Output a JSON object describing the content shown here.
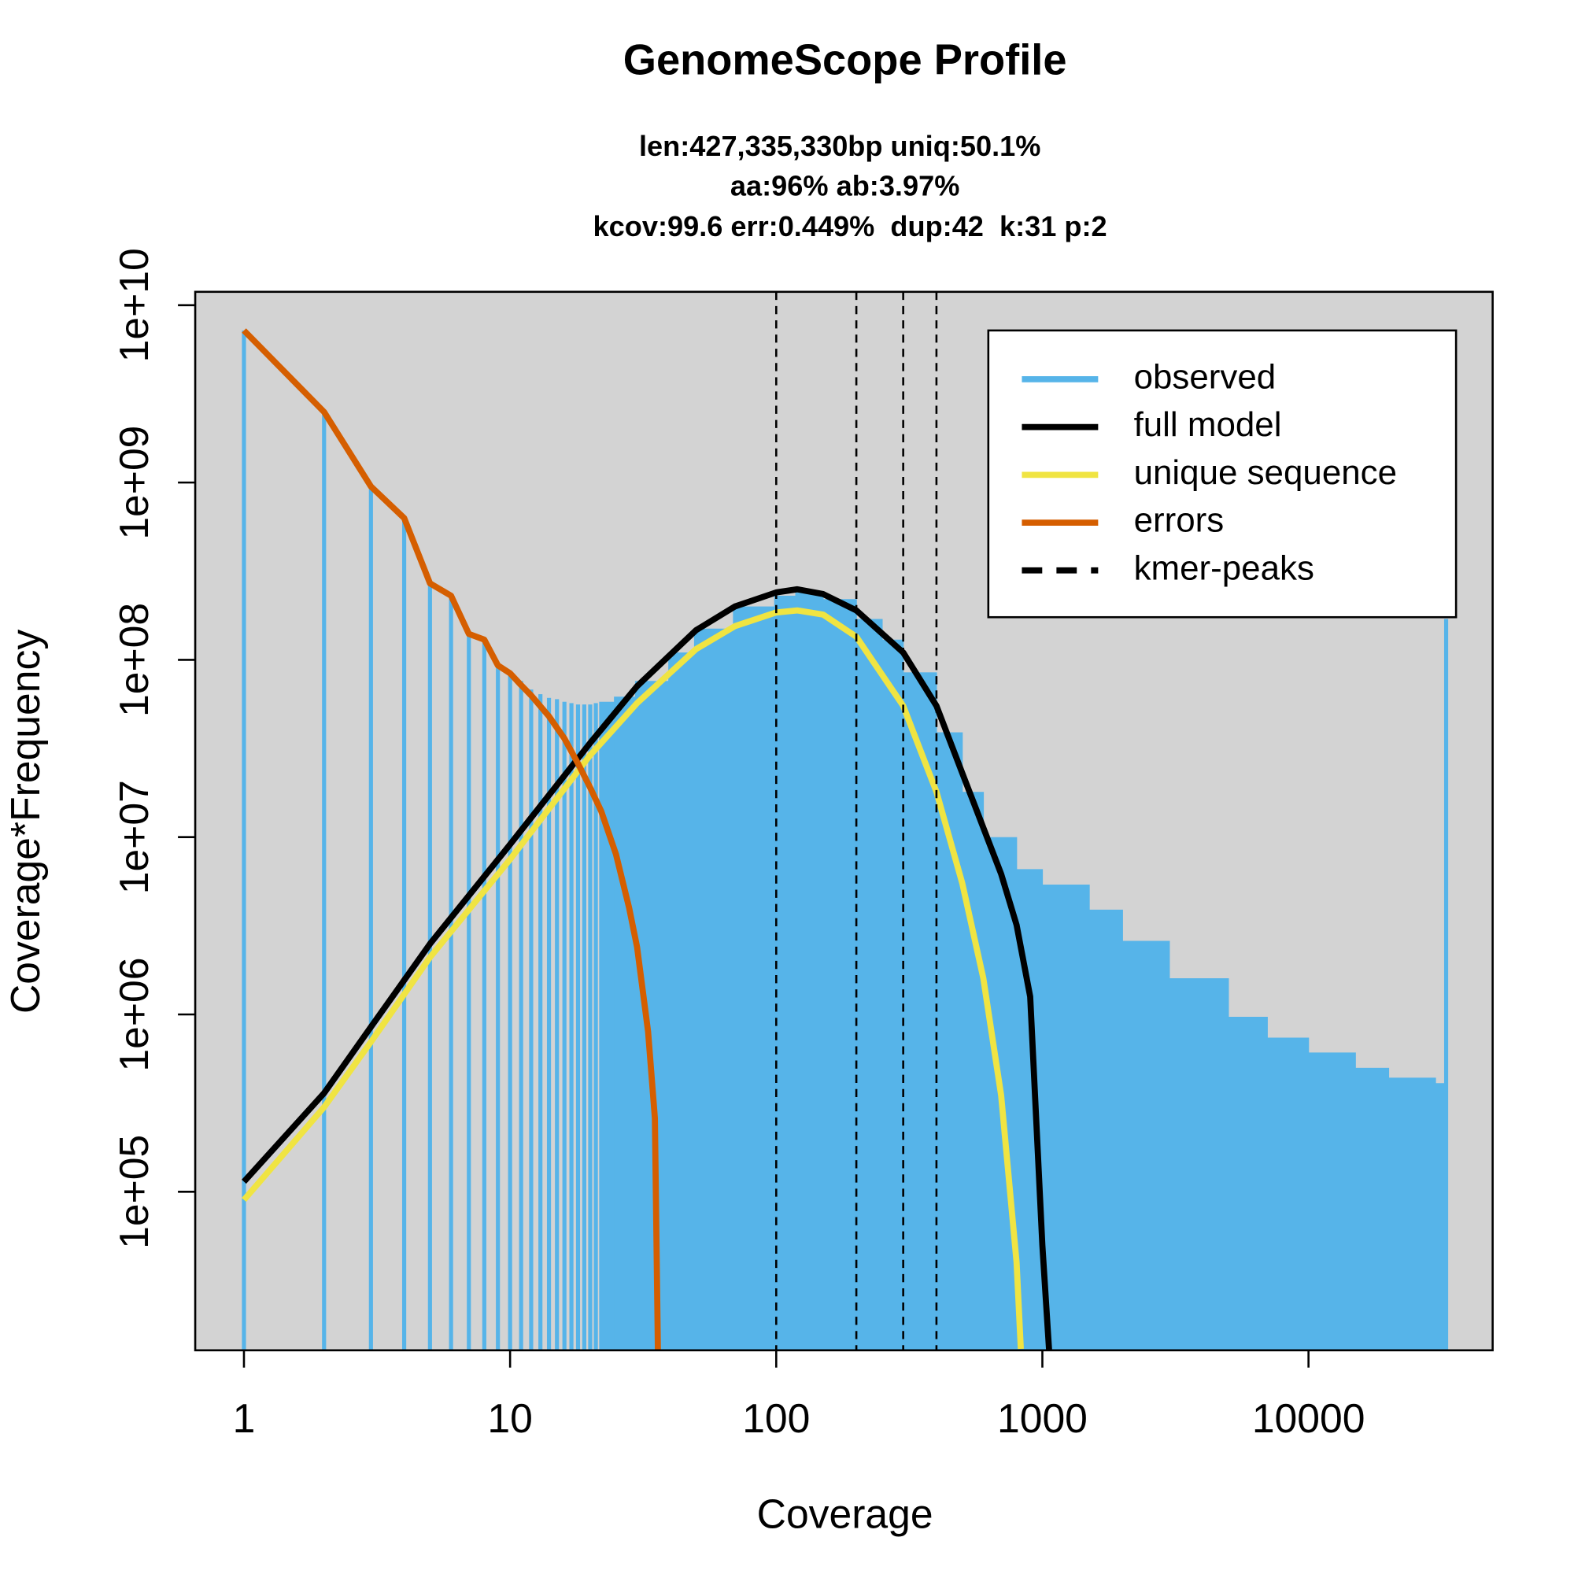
{
  "chart_data": {
    "type": "line",
    "title": "GenomeScope Profile",
    "subtitle": [
      "len:427,335,330bp uniq:50.1%",
      "aa:96% ab:3.97%",
      "kcov:99.6 err:0.449%  dup:42  k:31 p:2"
    ],
    "x_label": "Coverage",
    "y_label": "Coverage*Frequency",
    "log_x": true,
    "log_y": true,
    "panel_color": "#d3d3d3",
    "legend": "topright",
    "xlim": [
      0.656,
      49200
    ],
    "ylim": [
      12760,
      11900000000
    ],
    "xticks": [
      1,
      10,
      100,
      1000,
      10000
    ],
    "yticks": [
      {
        "value": 100000,
        "label": "1e+05"
      },
      {
        "value": 1000000,
        "label": "1e+06"
      },
      {
        "value": 10000000,
        "label": "1e+07"
      },
      {
        "value": 100000000,
        "label": "1e+08"
      },
      {
        "value": 1000000000,
        "label": "1e+09"
      },
      {
        "value": 10000000000,
        "label": "1e+10"
      }
    ],
    "series": [
      {
        "name": "observed",
        "color": "#56b4e9",
        "draw": "h",
        "x": [
          1,
          2,
          3,
          4,
          5,
          6,
          7,
          8,
          9,
          10,
          11,
          12,
          13,
          14,
          15,
          16,
          17,
          18,
          19,
          20,
          21,
          22,
          25,
          30,
          40,
          50,
          70,
          100,
          120,
          150,
          200,
          250,
          300,
          400,
          500,
          600,
          800,
          1000,
          1500,
          2000,
          3000,
          5000,
          7000,
          10000,
          15000,
          20000,
          30000,
          32900
        ],
        "values": [
          7200000000,
          2500000000,
          930000000,
          630000000,
          270000000,
          230000000,
          140000000,
          130000000,
          93000000,
          84000000,
          76000000,
          68000000,
          64000000,
          61000000,
          60000000,
          58000000,
          57000000,
          56000000,
          56000000,
          56000000,
          57000000,
          58000000,
          62000000,
          76000000,
          110000000,
          150000000,
          200000000,
          230000000,
          240000000,
          220000000,
          170000000,
          130000000,
          85000000,
          39000000,
          18000000,
          10000000,
          6600000,
          5400000,
          3900000,
          2600000,
          1600000,
          970000,
          740000,
          610000,
          500000,
          440000,
          410000,
          170000000
        ]
      },
      {
        "name": "full model",
        "color": "#000000",
        "draw": "line",
        "x": [
          1,
          2,
          3,
          5,
          10,
          20,
          30,
          50,
          70,
          100,
          120,
          150,
          200,
          300,
          400,
          500,
          700,
          800,
          900,
          1000,
          1060
        ],
        "values": [
          114000,
          360000,
          850000,
          2500000,
          9100000,
          34000000,
          71000000,
          147000000,
          200000000,
          240000000,
          250000000,
          235000000,
          190000000,
          110000000,
          55000000,
          23000000,
          6200000,
          3200000,
          1260000,
          50000,
          12760
        ]
      },
      {
        "name": "unique sequence",
        "color": "#f0e442",
        "draw": "line",
        "x": [
          1,
          2,
          3,
          5,
          10,
          20,
          30,
          50,
          70,
          100,
          120,
          150,
          200,
          300,
          400,
          500,
          600,
          700,
          800,
          830
        ],
        "values": [
          90000,
          300000,
          700000,
          2100000,
          7500000,
          29000000,
          57000000,
          115000000,
          155000000,
          185000000,
          190000000,
          180000000,
          135000000,
          55000000,
          18000000,
          5500000,
          1600000,
          350000,
          40000,
          13000
        ]
      },
      {
        "name": "errors",
        "color": "#d55e00",
        "draw": "line",
        "x": [
          1,
          2,
          3,
          4,
          5,
          6,
          7,
          8,
          9,
          10,
          11,
          12,
          14,
          16,
          18,
          20,
          22,
          25,
          28,
          30,
          33,
          35,
          36
        ],
        "values": [
          7200000000,
          2500000000,
          950000000,
          630000000,
          270000000,
          230000000,
          140000000,
          130000000,
          93000000,
          84000000,
          72000000,
          63000000,
          48000000,
          36000000,
          26000000,
          19000000,
          14000000,
          8000000,
          4000000,
          2400000,
          800000,
          260000,
          10000
        ]
      },
      {
        "name": "kmer-peaks",
        "color": "#000000",
        "draw": "vline",
        "dashed": true,
        "x": [
          100,
          200,
          300,
          400
        ]
      }
    ]
  }
}
